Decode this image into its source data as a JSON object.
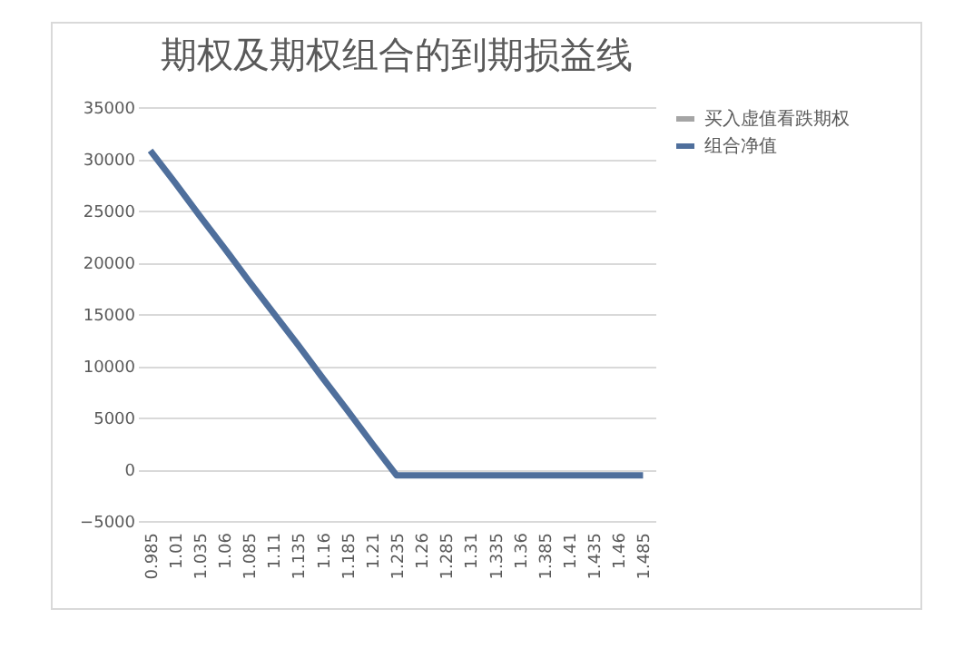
{
  "chart_data": {
    "type": "line",
    "title": "期权及期权组合的到期损益线",
    "categories": [
      "0.985",
      "1.01",
      "1.035",
      "1.06",
      "1.085",
      "1.11",
      "1.135",
      "1.16",
      "1.185",
      "1.21",
      "1.235",
      "1.26",
      "1.285",
      "1.31",
      "1.335",
      "1.36",
      "1.385",
      "1.41",
      "1.435",
      "1.46",
      "1.485"
    ],
    "series": [
      {
        "name": "买入虚值看跌期权",
        "color": "#a5a5a5",
        "values": [
          null,
          null,
          null,
          null,
          null,
          null,
          null,
          null,
          null,
          null,
          null,
          null,
          null,
          null,
          null,
          null,
          null,
          null,
          null,
          null,
          null
        ]
      },
      {
        "name": "组合净值",
        "color": "#4f6f9c",
        "values": [
          30800,
          27700,
          24500,
          21400,
          18200,
          15100,
          12000,
          8800,
          5700,
          2500,
          -600,
          -600,
          -600,
          -600,
          -600,
          -600,
          -600,
          -600,
          -600,
          -600,
          -600
        ]
      }
    ],
    "ylim": [
      -5000,
      35000
    ],
    "yticks": [
      -5000,
      0,
      5000,
      10000,
      15000,
      20000,
      25000,
      30000,
      35000
    ],
    "grid": "y",
    "legend": "right"
  }
}
